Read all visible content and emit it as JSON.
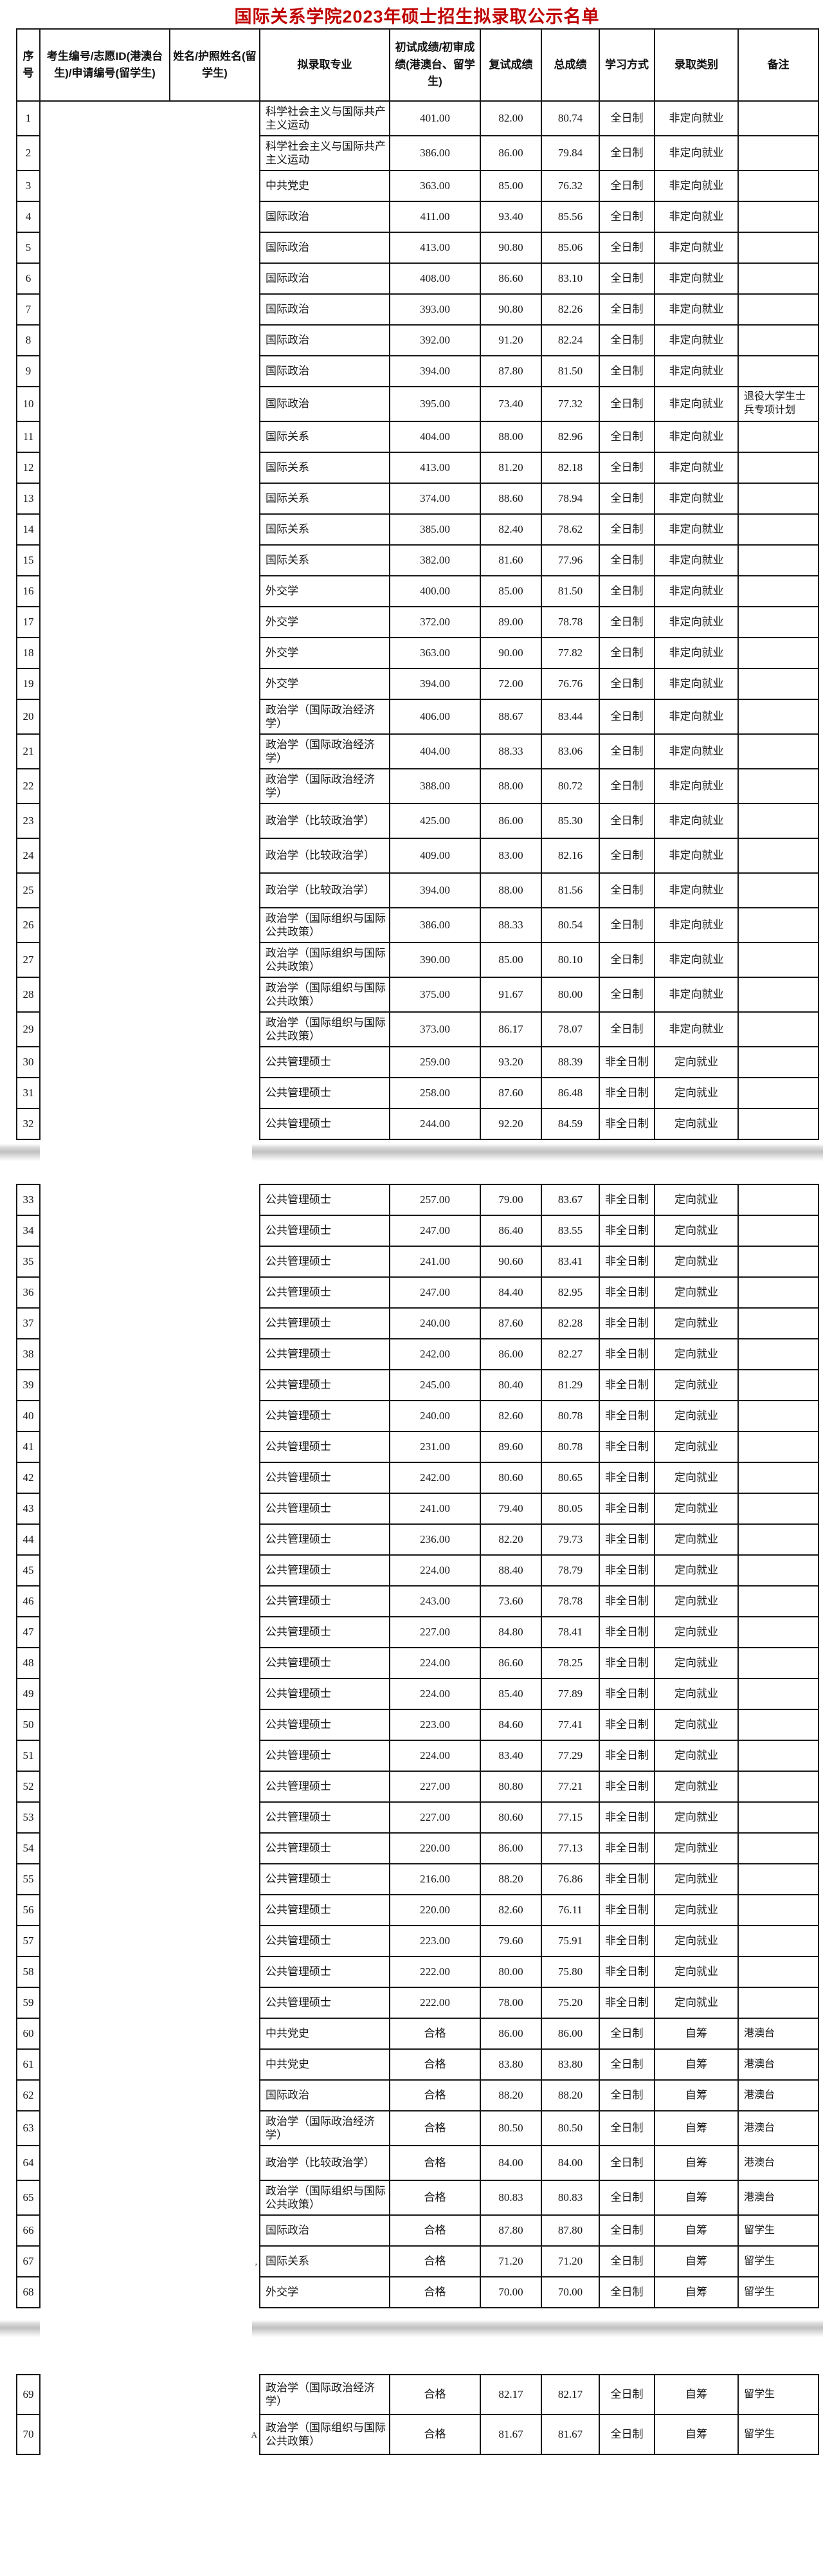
{
  "title": "国际关系学院2023年硕士招生拟录取公示名单",
  "colors": {
    "title": "#c00000",
    "border": "#171717",
    "separator_shadow": "#c0c0c0",
    "background": "#ffffff"
  },
  "table": {
    "headers": [
      "序号",
      "考生编号/志愿ID(港澳台生)/申请编号(留学生)",
      "姓名/护照姓名(留学生)",
      "拟录取专业",
      "初试成绩/初审成绩(港澳台、留学生)",
      "复试成绩",
      "总成绩",
      "学习方式",
      "录取类别",
      "备注"
    ],
    "rows": [
      {
        "no": "1",
        "major": "科学社会主义与国际共产主义运动",
        "initial": "401.00",
        "retest": "82.00",
        "total": "80.74",
        "study_mode": "全日制",
        "admission_type": "非定向就业",
        "remark": "",
        "name_mark": ""
      },
      {
        "no": "2",
        "major": "科学社会主义与国际共产主义运动",
        "initial": "386.00",
        "retest": "86.00",
        "total": "79.84",
        "study_mode": "全日制",
        "admission_type": "非定向就业",
        "remark": "",
        "name_mark": ""
      },
      {
        "no": "3",
        "major": "中共党史",
        "initial": "363.00",
        "retest": "85.00",
        "total": "76.32",
        "study_mode": "全日制",
        "admission_type": "非定向就业",
        "remark": "",
        "name_mark": ""
      },
      {
        "no": "4",
        "major": "国际政治",
        "initial": "411.00",
        "retest": "93.40",
        "total": "85.56",
        "study_mode": "全日制",
        "admission_type": "非定向就业",
        "remark": "",
        "name_mark": ""
      },
      {
        "no": "5",
        "major": "国际政治",
        "initial": "413.00",
        "retest": "90.80",
        "total": "85.06",
        "study_mode": "全日制",
        "admission_type": "非定向就业",
        "remark": "",
        "name_mark": ""
      },
      {
        "no": "6",
        "major": "国际政治",
        "initial": "408.00",
        "retest": "86.60",
        "total": "83.10",
        "study_mode": "全日制",
        "admission_type": "非定向就业",
        "remark": "",
        "name_mark": ""
      },
      {
        "no": "7",
        "major": "国际政治",
        "initial": "393.00",
        "retest": "90.80",
        "total": "82.26",
        "study_mode": "全日制",
        "admission_type": "非定向就业",
        "remark": "",
        "name_mark": ""
      },
      {
        "no": "8",
        "major": "国际政治",
        "initial": "392.00",
        "retest": "91.20",
        "total": "82.24",
        "study_mode": "全日制",
        "admission_type": "非定向就业",
        "remark": "",
        "name_mark": ""
      },
      {
        "no": "9",
        "major": "国际政治",
        "initial": "394.00",
        "retest": "87.80",
        "total": "81.50",
        "study_mode": "全日制",
        "admission_type": "非定向就业",
        "remark": "",
        "name_mark": ""
      },
      {
        "no": "10",
        "major": "国际政治",
        "initial": "395.00",
        "retest": "73.40",
        "total": "77.32",
        "study_mode": "全日制",
        "admission_type": "非定向就业",
        "remark": "退役大学生士兵专项计划",
        "name_mark": ""
      },
      {
        "no": "11",
        "major": "国际关系",
        "initial": "404.00",
        "retest": "88.00",
        "total": "82.96",
        "study_mode": "全日制",
        "admission_type": "非定向就业",
        "remark": "",
        "name_mark": ""
      },
      {
        "no": "12",
        "major": "国际关系",
        "initial": "413.00",
        "retest": "81.20",
        "total": "82.18",
        "study_mode": "全日制",
        "admission_type": "非定向就业",
        "remark": "",
        "name_mark": ""
      },
      {
        "no": "13",
        "major": "国际关系",
        "initial": "374.00",
        "retest": "88.60",
        "total": "78.94",
        "study_mode": "全日制",
        "admission_type": "非定向就业",
        "remark": "",
        "name_mark": ""
      },
      {
        "no": "14",
        "major": "国际关系",
        "initial": "385.00",
        "retest": "82.40",
        "total": "78.62",
        "study_mode": "全日制",
        "admission_type": "非定向就业",
        "remark": "",
        "name_mark": ""
      },
      {
        "no": "15",
        "major": "国际关系",
        "initial": "382.00",
        "retest": "81.60",
        "total": "77.96",
        "study_mode": "全日制",
        "admission_type": "非定向就业",
        "remark": "",
        "name_mark": ""
      },
      {
        "no": "16",
        "major": "外交学",
        "initial": "400.00",
        "retest": "85.00",
        "total": "81.50",
        "study_mode": "全日制",
        "admission_type": "非定向就业",
        "remark": "",
        "name_mark": ""
      },
      {
        "no": "17",
        "major": "外交学",
        "initial": "372.00",
        "retest": "89.00",
        "total": "78.78",
        "study_mode": "全日制",
        "admission_type": "非定向就业",
        "remark": "",
        "name_mark": ""
      },
      {
        "no": "18",
        "major": "外交学",
        "initial": "363.00",
        "retest": "90.00",
        "total": "77.82",
        "study_mode": "全日制",
        "admission_type": "非定向就业",
        "remark": "",
        "name_mark": ""
      },
      {
        "no": "19",
        "major": "外交学",
        "initial": "394.00",
        "retest": "72.00",
        "total": "76.76",
        "study_mode": "全日制",
        "admission_type": "非定向就业",
        "remark": "",
        "name_mark": ""
      },
      {
        "no": "20",
        "major": "政治学（国际政治经济学）",
        "initial": "406.00",
        "retest": "88.67",
        "total": "83.44",
        "study_mode": "全日制",
        "admission_type": "非定向就业",
        "remark": "",
        "name_mark": ""
      },
      {
        "no": "21",
        "major": "政治学（国际政治经济学）",
        "initial": "404.00",
        "retest": "88.33",
        "total": "83.06",
        "study_mode": "全日制",
        "admission_type": "非定向就业",
        "remark": "",
        "name_mark": ""
      },
      {
        "no": "22",
        "major": "政治学（国际政治经济学）",
        "initial": "388.00",
        "retest": "88.00",
        "total": "80.72",
        "study_mode": "全日制",
        "admission_type": "非定向就业",
        "remark": "",
        "name_mark": ""
      },
      {
        "no": "23",
        "major": "政治学（比较政治学）",
        "initial": "425.00",
        "retest": "86.00",
        "total": "85.30",
        "study_mode": "全日制",
        "admission_type": "非定向就业",
        "remark": "",
        "name_mark": ""
      },
      {
        "no": "24",
        "major": "政治学（比较政治学）",
        "initial": "409.00",
        "retest": "83.00",
        "total": "82.16",
        "study_mode": "全日制",
        "admission_type": "非定向就业",
        "remark": "",
        "name_mark": ""
      },
      {
        "no": "25",
        "major": "政治学（比较政治学）",
        "initial": "394.00",
        "retest": "88.00",
        "total": "81.56",
        "study_mode": "全日制",
        "admission_type": "非定向就业",
        "remark": "",
        "name_mark": ""
      },
      {
        "no": "26",
        "major": "政治学（国际组织与国际公共政策）",
        "initial": "386.00",
        "retest": "88.33",
        "total": "80.54",
        "study_mode": "全日制",
        "admission_type": "非定向就业",
        "remark": "",
        "name_mark": ""
      },
      {
        "no": "27",
        "major": "政治学（国际组织与国际公共政策）",
        "initial": "390.00",
        "retest": "85.00",
        "total": "80.10",
        "study_mode": "全日制",
        "admission_type": "非定向就业",
        "remark": "",
        "name_mark": ""
      },
      {
        "no": "28",
        "major": "政治学（国际组织与国际公共政策）",
        "initial": "375.00",
        "retest": "91.67",
        "total": "80.00",
        "study_mode": "全日制",
        "admission_type": "非定向就业",
        "remark": "",
        "name_mark": ""
      },
      {
        "no": "29",
        "major": "政治学（国际组织与国际公共政策）",
        "initial": "373.00",
        "retest": "86.17",
        "total": "78.07",
        "study_mode": "全日制",
        "admission_type": "非定向就业",
        "remark": "",
        "name_mark": ""
      },
      {
        "no": "30",
        "major": "公共管理硕士",
        "initial": "259.00",
        "retest": "93.20",
        "total": "88.39",
        "study_mode": "非全日制",
        "admission_type": "定向就业",
        "remark": "",
        "name_mark": ""
      },
      {
        "no": "31",
        "major": "公共管理硕士",
        "initial": "258.00",
        "retest": "87.60",
        "total": "86.48",
        "study_mode": "非全日制",
        "admission_type": "定向就业",
        "remark": "",
        "name_mark": ""
      },
      {
        "no": "32",
        "major": "公共管理硕士",
        "initial": "244.00",
        "retest": "92.20",
        "total": "84.59",
        "study_mode": "非全日制",
        "admission_type": "定向就业",
        "remark": "",
        "name_mark": ""
      },
      {
        "no": "33",
        "major": "公共管理硕士",
        "initial": "257.00",
        "retest": "79.00",
        "total": "83.67",
        "study_mode": "非全日制",
        "admission_type": "定向就业",
        "remark": "",
        "name_mark": ""
      },
      {
        "no": "34",
        "major": "公共管理硕士",
        "initial": "247.00",
        "retest": "86.40",
        "total": "83.55",
        "study_mode": "非全日制",
        "admission_type": "定向就业",
        "remark": "",
        "name_mark": ""
      },
      {
        "no": "35",
        "major": "公共管理硕士",
        "initial": "241.00",
        "retest": "90.60",
        "total": "83.41",
        "study_mode": "非全日制",
        "admission_type": "定向就业",
        "remark": "",
        "name_mark": ""
      },
      {
        "no": "36",
        "major": "公共管理硕士",
        "initial": "247.00",
        "retest": "84.40",
        "total": "82.95",
        "study_mode": "非全日制",
        "admission_type": "定向就业",
        "remark": "",
        "name_mark": ""
      },
      {
        "no": "37",
        "major": "公共管理硕士",
        "initial": "240.00",
        "retest": "87.60",
        "total": "82.28",
        "study_mode": "非全日制",
        "admission_type": "定向就业",
        "remark": "",
        "name_mark": ""
      },
      {
        "no": "38",
        "major": "公共管理硕士",
        "initial": "242.00",
        "retest": "86.00",
        "total": "82.27",
        "study_mode": "非全日制",
        "admission_type": "定向就业",
        "remark": "",
        "name_mark": ""
      },
      {
        "no": "39",
        "major": "公共管理硕士",
        "initial": "245.00",
        "retest": "80.40",
        "total": "81.29",
        "study_mode": "非全日制",
        "admission_type": "定向就业",
        "remark": "",
        "name_mark": ""
      },
      {
        "no": "40",
        "major": "公共管理硕士",
        "initial": "240.00",
        "retest": "82.60",
        "total": "80.78",
        "study_mode": "非全日制",
        "admission_type": "定向就业",
        "remark": "",
        "name_mark": ""
      },
      {
        "no": "41",
        "major": "公共管理硕士",
        "initial": "231.00",
        "retest": "89.60",
        "total": "80.78",
        "study_mode": "非全日制",
        "admission_type": "定向就业",
        "remark": "",
        "name_mark": ""
      },
      {
        "no": "42",
        "major": "公共管理硕士",
        "initial": "242.00",
        "retest": "80.60",
        "total": "80.65",
        "study_mode": "非全日制",
        "admission_type": "定向就业",
        "remark": "",
        "name_mark": ""
      },
      {
        "no": "43",
        "major": "公共管理硕士",
        "initial": "241.00",
        "retest": "79.40",
        "total": "80.05",
        "study_mode": "非全日制",
        "admission_type": "定向就业",
        "remark": "",
        "name_mark": ""
      },
      {
        "no": "44",
        "major": "公共管理硕士",
        "initial": "236.00",
        "retest": "82.20",
        "total": "79.73",
        "study_mode": "非全日制",
        "admission_type": "定向就业",
        "remark": "",
        "name_mark": ""
      },
      {
        "no": "45",
        "major": "公共管理硕士",
        "initial": "224.00",
        "retest": "88.40",
        "total": "78.79",
        "study_mode": "非全日制",
        "admission_type": "定向就业",
        "remark": "",
        "name_mark": ""
      },
      {
        "no": "46",
        "major": "公共管理硕士",
        "initial": "243.00",
        "retest": "73.60",
        "total": "78.78",
        "study_mode": "非全日制",
        "admission_type": "定向就业",
        "remark": "",
        "name_mark": ""
      },
      {
        "no": "47",
        "major": "公共管理硕士",
        "initial": "227.00",
        "retest": "84.80",
        "total": "78.41",
        "study_mode": "非全日制",
        "admission_type": "定向就业",
        "remark": "",
        "name_mark": ""
      },
      {
        "no": "48",
        "major": "公共管理硕士",
        "initial": "224.00",
        "retest": "86.60",
        "total": "78.25",
        "study_mode": "非全日制",
        "admission_type": "定向就业",
        "remark": "",
        "name_mark": ""
      },
      {
        "no": "49",
        "major": "公共管理硕士",
        "initial": "224.00",
        "retest": "85.40",
        "total": "77.89",
        "study_mode": "非全日制",
        "admission_type": "定向就业",
        "remark": "",
        "name_mark": ""
      },
      {
        "no": "50",
        "major": "公共管理硕士",
        "initial": "223.00",
        "retest": "84.60",
        "total": "77.41",
        "study_mode": "非全日制",
        "admission_type": "定向就业",
        "remark": "",
        "name_mark": ""
      },
      {
        "no": "51",
        "major": "公共管理硕士",
        "initial": "224.00",
        "retest": "83.40",
        "total": "77.29",
        "study_mode": "非全日制",
        "admission_type": "定向就业",
        "remark": "",
        "name_mark": ""
      },
      {
        "no": "52",
        "major": "公共管理硕士",
        "initial": "227.00",
        "retest": "80.80",
        "total": "77.21",
        "study_mode": "非全日制",
        "admission_type": "定向就业",
        "remark": "",
        "name_mark": ""
      },
      {
        "no": "53",
        "major": "公共管理硕士",
        "initial": "227.00",
        "retest": "80.60",
        "total": "77.15",
        "study_mode": "非全日制",
        "admission_type": "定向就业",
        "remark": "",
        "name_mark": ""
      },
      {
        "no": "54",
        "major": "公共管理硕士",
        "initial": "220.00",
        "retest": "86.00",
        "total": "77.13",
        "study_mode": "非全日制",
        "admission_type": "定向就业",
        "remark": "",
        "name_mark": ""
      },
      {
        "no": "55",
        "major": "公共管理硕士",
        "initial": "216.00",
        "retest": "88.20",
        "total": "76.86",
        "study_mode": "非全日制",
        "admission_type": "定向就业",
        "remark": "",
        "name_mark": ""
      },
      {
        "no": "56",
        "major": "公共管理硕士",
        "initial": "220.00",
        "retest": "82.60",
        "total": "76.11",
        "study_mode": "非全日制",
        "admission_type": "定向就业",
        "remark": "",
        "name_mark": ""
      },
      {
        "no": "57",
        "major": "公共管理硕士",
        "initial": "223.00",
        "retest": "79.60",
        "total": "75.91",
        "study_mode": "非全日制",
        "admission_type": "定向就业",
        "remark": "",
        "name_mark": ""
      },
      {
        "no": "58",
        "major": "公共管理硕士",
        "initial": "222.00",
        "retest": "80.00",
        "total": "75.80",
        "study_mode": "非全日制",
        "admission_type": "定向就业",
        "remark": "",
        "name_mark": ""
      },
      {
        "no": "59",
        "major": "公共管理硕士",
        "initial": "222.00",
        "retest": "78.00",
        "total": "75.20",
        "study_mode": "非全日制",
        "admission_type": "定向就业",
        "remark": "",
        "name_mark": ""
      },
      {
        "no": "60",
        "major": "中共党史",
        "initial": "合格",
        "retest": "86.00",
        "total": "86.00",
        "study_mode": "全日制",
        "admission_type": "自筹",
        "remark": "港澳台",
        "name_mark": ""
      },
      {
        "no": "61",
        "major": "中共党史",
        "initial": "合格",
        "retest": "83.80",
        "total": "83.80",
        "study_mode": "全日制",
        "admission_type": "自筹",
        "remark": "港澳台",
        "name_mark": ""
      },
      {
        "no": "62",
        "major": "国际政治",
        "initial": "合格",
        "retest": "88.20",
        "total": "88.20",
        "study_mode": "全日制",
        "admission_type": "自筹",
        "remark": "港澳台",
        "name_mark": ""
      },
      {
        "no": "63",
        "major": "政治学（国际政治经济学）",
        "initial": "合格",
        "retest": "80.50",
        "total": "80.50",
        "study_mode": "全日制",
        "admission_type": "自筹",
        "remark": "港澳台",
        "name_mark": ""
      },
      {
        "no": "64",
        "major": "政治学（比较政治学）",
        "initial": "合格",
        "retest": "84.00",
        "total": "84.00",
        "study_mode": "全日制",
        "admission_type": "自筹",
        "remark": "港澳台",
        "name_mark": ""
      },
      {
        "no": "65",
        "major": "政治学（国际组织与国际公共政策）",
        "initial": "合格",
        "retest": "80.83",
        "total": "80.83",
        "study_mode": "全日制",
        "admission_type": "自筹",
        "remark": "港澳台",
        "name_mark": ""
      },
      {
        "no": "66",
        "major": "国际政治",
        "initial": "合格",
        "retest": "87.80",
        "total": "87.80",
        "study_mode": "全日制",
        "admission_type": "自筹",
        "remark": "留学生",
        "name_mark": ""
      },
      {
        "no": "67",
        "major": "国际关系",
        "initial": "合格",
        "retest": "71.20",
        "total": "71.20",
        "study_mode": "全日制",
        "admission_type": "自筹",
        "remark": "留学生",
        "name_mark": ","
      },
      {
        "no": "68",
        "major": "外交学",
        "initial": "合格",
        "retest": "70.00",
        "total": "70.00",
        "study_mode": "全日制",
        "admission_type": "自筹",
        "remark": "留学生",
        "name_mark": ""
      },
      {
        "no": "69",
        "major": "政治学（国际政治经济学）",
        "initial": "合格",
        "retest": "82.17",
        "total": "82.17",
        "study_mode": "全日制",
        "admission_type": "自筹",
        "remark": "留学生",
        "name_mark": ""
      },
      {
        "no": "70",
        "major": "政治学（国际组织与国际公共政策）",
        "initial": "合格",
        "retest": "81.67",
        "total": "81.67",
        "study_mode": "全日制",
        "admission_type": "自筹",
        "remark": "留学生",
        "name_mark": "A"
      }
    ]
  },
  "pages": [
    {
      "first_row": 1,
      "last_row": 32,
      "has_header": true
    },
    {
      "first_row": 33,
      "last_row": 68,
      "has_header": false
    },
    {
      "first_row": 69,
      "last_row": 70,
      "has_header": false
    }
  ]
}
